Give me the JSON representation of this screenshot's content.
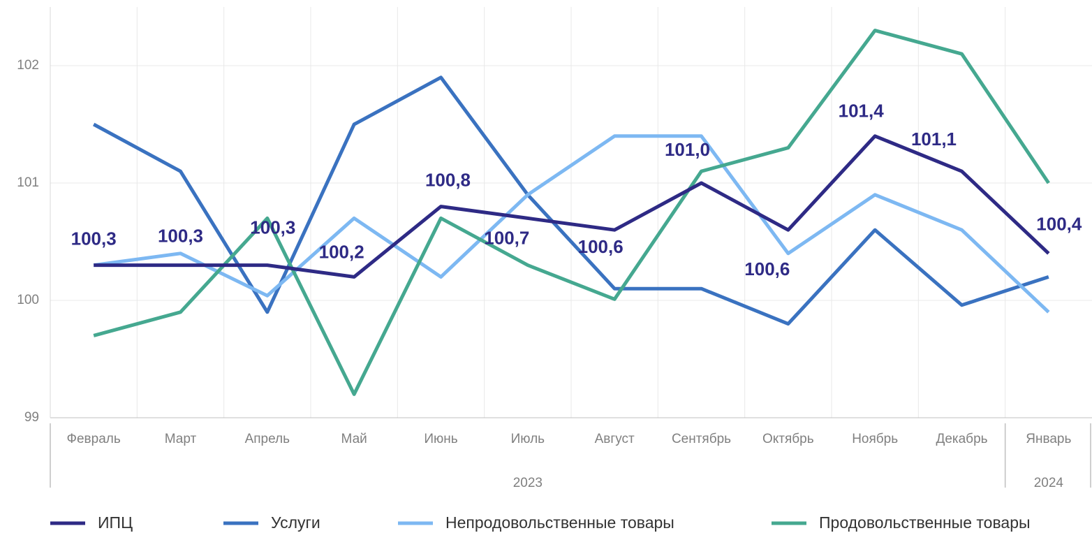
{
  "chart_data": {
    "type": "line",
    "category_groups": [
      {
        "label": "2023",
        "categories": [
          "Февраль",
          "Март",
          "Апрель",
          "Май",
          "Июнь",
          "Июль",
          "Август",
          "Сентябрь",
          "Октябрь",
          "Ноябрь",
          "Декабрь"
        ]
      },
      {
        "label": "2024",
        "categories": [
          "Январь"
        ]
      }
    ],
    "series": [
      {
        "name": "ИПЦ",
        "color": "#2e2a85",
        "values": [
          100.3,
          100.3,
          100.3,
          100.2,
          100.8,
          100.7,
          100.6,
          101.0,
          100.6,
          101.4,
          101.1,
          100.4
        ],
        "value_labels": [
          "100,3",
          "100,3",
          "100,3",
          "100,2",
          "100,8",
          "100,7",
          "100,6",
          "101,0",
          "100,6",
          "101,4",
          "101,1",
          "100,4"
        ]
      },
      {
        "name": "Услуги",
        "color": "#3a72c0",
        "values": [
          101.5,
          101.1,
          99.9,
          101.5,
          101.9,
          100.9,
          100.1,
          100.1,
          99.8,
          100.6,
          99.96,
          100.2
        ]
      },
      {
        "name": "Непродовольственные товары",
        "color": "#7db8f2",
        "values": [
          100.3,
          100.4,
          100.04,
          100.7,
          100.2,
          100.9,
          101.4,
          101.4,
          100.4,
          100.9,
          100.6,
          99.9
        ]
      },
      {
        "name": "Продовольственные товары",
        "color": "#45a890",
        "values": [
          99.7,
          99.9,
          100.7,
          99.2,
          100.7,
          100.3,
          100.01,
          101.1,
          101.3,
          102.3,
          102.1,
          101.0
        ]
      }
    ],
    "ylim": [
      99,
      102.5
    ],
    "yticks": [
      99,
      100,
      101,
      102
    ],
    "grid": true,
    "legend": "bottom"
  }
}
